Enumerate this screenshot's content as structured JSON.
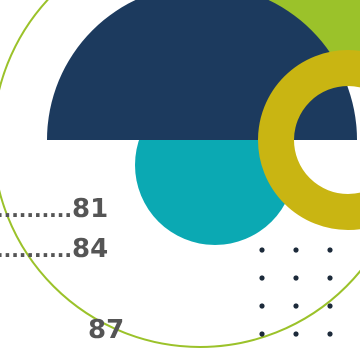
{
  "toc": {
    "entries": [
      {
        "leader": "..........",
        "page": "81"
      },
      {
        "leader": "..........",
        "page": "84"
      },
      {
        "leader": "",
        "page": "87"
      }
    ]
  },
  "colors": {
    "navy": "#1c3a5e",
    "teal": "#0ba9b3",
    "lime": "#9bc22a",
    "mustard": "#c9b512",
    "text": "#555555",
    "dots": "#1c2a3a"
  }
}
